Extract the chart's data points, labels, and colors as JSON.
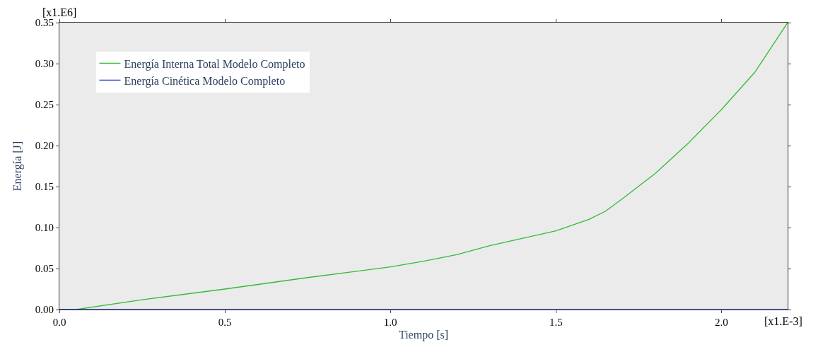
{
  "chart_data": {
    "type": "line",
    "xlabel": "Tiempo [s]",
    "ylabel": "Energía [J]",
    "annotations": [
      "[x1.E6]",
      "[x1.E-3]"
    ],
    "xlim": [
      0,
      2.2
    ],
    "xticks": [
      {
        "value": 0,
        "label": "0.0"
      },
      {
        "value": 0.5,
        "label": "0.5"
      },
      {
        "value": 1,
        "label": "1.0"
      },
      {
        "value": 1.5,
        "label": "1.5"
      },
      {
        "value": 2,
        "label": "2.0"
      }
    ],
    "ylim": [
      0,
      0.35
    ],
    "yticks": [
      {
        "value": 0,
        "label": "0.00"
      },
      {
        "value": 0.05,
        "label": "0.05"
      },
      {
        "value": 0.1,
        "label": "0.10"
      },
      {
        "value": 0.15,
        "label": "0.15"
      },
      {
        "value": 0.2,
        "label": "0.20"
      },
      {
        "value": 0.25,
        "label": "0.25"
      },
      {
        "value": 0.3,
        "label": "0.30"
      },
      {
        "value": 0.35,
        "label": "0.35"
      }
    ],
    "grid": false,
    "legend": "top left",
    "marker": "none",
    "line_style": "solid",
    "series": [
      {
        "name": "Energía Interna Total Modelo Completo",
        "color": "#33bb33",
        "x": [
          0,
          0.05,
          0.25,
          0.5,
          0.75,
          1.0,
          1.1,
          1.2,
          1.3,
          1.4,
          1.5,
          1.6,
          1.65,
          1.7,
          1.8,
          1.9,
          2.0,
          2.1,
          2.2
        ],
        "values": [
          0,
          0,
          0.012,
          0.025,
          0.039,
          0.052,
          0.059,
          0.067,
          0.078,
          0.087,
          0.096,
          0.11,
          0.12,
          0.135,
          0.166,
          0.203,
          0.244,
          0.289,
          0.35
        ]
      },
      {
        "name": "Energía Cinética Modelo Completo",
        "color": "#2233cc",
        "x": [
          0,
          0.5,
          1.0,
          1.5,
          2.0,
          2.2
        ],
        "values": [
          0,
          0,
          0,
          0,
          0,
          0
        ]
      }
    ]
  }
}
